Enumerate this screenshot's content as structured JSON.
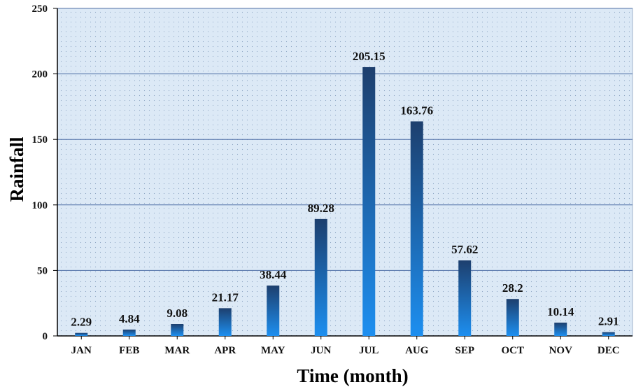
{
  "chart_data": {
    "type": "bar",
    "categories": [
      "JAN",
      "FEB",
      "MAR",
      "APR",
      "MAY",
      "JUN",
      "JUL",
      "AUG",
      "SEP",
      "OCT",
      "NOV",
      "DEC"
    ],
    "values": [
      2.29,
      4.84,
      9.08,
      21.17,
      38.44,
      89.28,
      205.15,
      163.76,
      57.62,
      28.2,
      10.14,
      2.91
    ],
    "data_labels": [
      "2.29",
      "4.84",
      "9.08",
      "21.17",
      "38.44",
      "89.28",
      "205.15",
      "163.76",
      "57.62",
      "28.2",
      "10.14",
      "2.91"
    ],
    "ylabel": "Rainfall",
    "xlabel": "Time (month)",
    "ylim": [
      0,
      250
    ],
    "yticks": [
      0,
      50,
      100,
      150,
      200,
      250
    ],
    "grid": true,
    "colors": {
      "plot_bg": "#dce9f6",
      "grid": "#4f6fa6",
      "bar_top": "#1d3f6e",
      "bar_bottom": "#1d8ff0"
    }
  }
}
